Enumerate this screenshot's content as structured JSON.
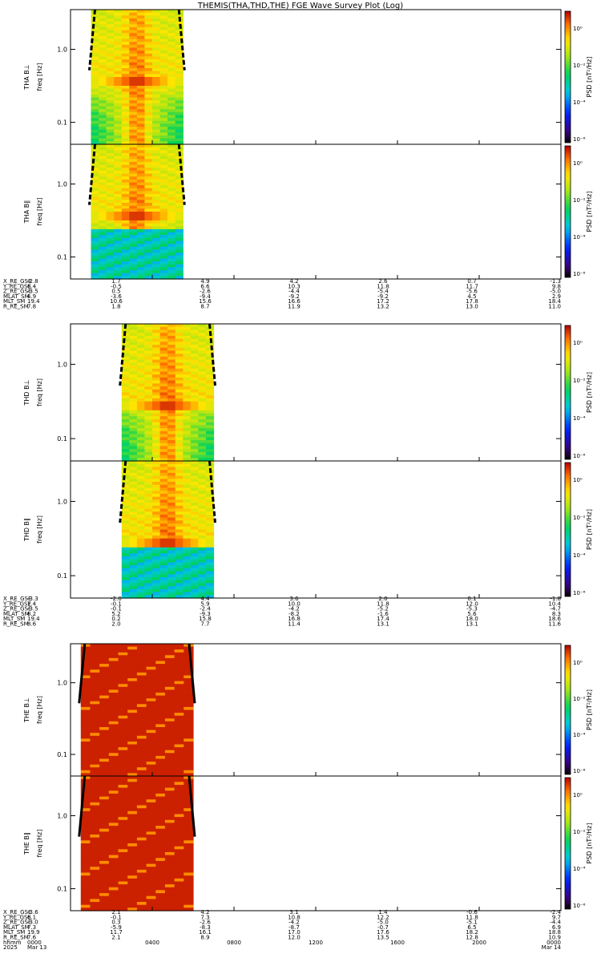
{
  "chart_data": {
    "type": "heatmap",
    "title": "THEMIS(THA,THD,THE) FGE Wave Survey Plot (Log)",
    "x_axis": {
      "ticks": [
        "0000",
        "0400",
        "0800",
        "1200",
        "1600",
        "2000",
        "0000"
      ],
      "row_label": "hhmm",
      "start_label": "2025",
      "dates": [
        "Mar 13",
        "Mar 14"
      ]
    },
    "y_axis": {
      "scale": "log",
      "ylim": [
        0.05,
        3.5
      ],
      "ticks": [
        "0.1",
        "1.0"
      ]
    },
    "colorbar": {
      "label": "PSD [nT²/Hz]",
      "ticks": [
        "10⁰",
        "10⁻²",
        "10⁻⁴",
        "10⁻⁶"
      ]
    },
    "panels": [
      {
        "probe": "THA",
        "component": "B⊥",
        "ylabel_probe": "THA B⊥",
        "ylabel_freq": "freq [Hz]",
        "data_start_hhmm": "0100",
        "data_end_hhmm": "0530",
        "peak_freq_hz": 0.35
      },
      {
        "probe": "THA",
        "component": "B∥",
        "ylabel_probe": "THA B∥",
        "ylabel_freq": "freq [Hz]",
        "data_start_hhmm": "0100",
        "data_end_hhmm": "0530",
        "peak_freq_hz": 0.37
      },
      {
        "probe": "THD",
        "component": "B⊥",
        "ylabel_probe": "THD B⊥",
        "ylabel_freq": "freq [Hz]",
        "data_start_hhmm": "0230",
        "data_end_hhmm": "0700",
        "peak_freq_hz": 0.28
      },
      {
        "probe": "THD",
        "component": "B∥",
        "ylabel_probe": "THD B∥",
        "ylabel_freq": "freq [Hz]",
        "data_start_hhmm": "0230",
        "data_end_hhmm": "0700",
        "peak_freq_hz": 0.28
      },
      {
        "probe": "THE",
        "component": "B⊥",
        "ylabel_probe": "THE B⊥",
        "ylabel_freq": "freq [Hz]",
        "data_start_hhmm": "0030",
        "data_end_hhmm": "0600",
        "peak_freq_hz": null
      },
      {
        "probe": "THE",
        "component": "B∥",
        "ylabel_probe": "THE B∥",
        "ylabel_freq": "freq [Hz]",
        "data_start_hhmm": "0030",
        "data_end_hhmm": "0600",
        "peak_freq_hz": null
      }
    ],
    "ephemeris_blocks": [
      {
        "probe": "THA",
        "rows": [
          {
            "label": "X_RE_GSE",
            "values": [
              "-2.8",
              "1.7",
              "4.9",
              "4.2",
              "2.6",
              "0.7",
              "-1.3"
            ]
          },
          {
            "label": "Y_RE_GSE",
            "values": [
              "6.4",
              "-0.5",
              "6.6",
              "10.3",
              "11.8",
              "11.7",
              "9.8"
            ]
          },
          {
            "label": "Z_RE_GSE",
            "values": [
              "-3.5",
              "0.5",
              "-2.6",
              "-4.4",
              "-5.4",
              "-5.6",
              "-5.0"
            ]
          },
          {
            "label": "MLAT_SM",
            "values": [
              "4.9",
              "-3.6",
              "-9.4",
              "-9.2",
              "-9.2",
              "4.5",
              "2.9"
            ]
          },
          {
            "label": "MLT_SM",
            "values": [
              "19.4",
              "10.6",
              "15.6",
              "16.6",
              "17.2",
              "17.8",
              "18.4"
            ]
          },
          {
            "label": "R_RE_SM",
            "values": [
              "7.8",
              "1.8",
              "8.7",
              "11.9",
              "13.2",
              "13.0",
              "11.0"
            ]
          }
        ]
      },
      {
        "probe": "THD",
        "rows": [
          {
            "label": "X_RE_GSE",
            "values": [
              "-3.3",
              "-2.0",
              "4.4",
              "3.6",
              "2.0",
              "0.1",
              "-1.8"
            ]
          },
          {
            "label": "Y_RE_GSE",
            "values": [
              "7.4",
              "-0.1",
              "5.9",
              "10.0",
              "11.8",
              "12.0",
              "10.4"
            ]
          },
          {
            "label": "Z_RE_GSE",
            "values": [
              "-3.5",
              "-0.1",
              "-2.4",
              "-4.2",
              "-5.2",
              "-5.3",
              "-4.7"
            ]
          },
          {
            "label": "MLAT_SM",
            "values": [
              "8.2",
              "5.2",
              "-9.3",
              "-8.2",
              "-1.6",
              "5.6",
              "8.3"
            ]
          },
          {
            "label": "MLT_SM",
            "values": [
              "19.4",
              "0.2",
              "15.8",
              "16.8",
              "17.4",
              "18.0",
              "18.6"
            ]
          },
          {
            "label": "R_RE_SM",
            "values": [
              "8.6",
              "2.0",
              "7.7",
              "11.4",
              "13.1",
              "13.1",
              "11.6"
            ]
          }
        ]
      },
      {
        "probe": "THE",
        "rows": [
          {
            "label": "X_RE_GSE",
            "values": [
              "-3.6",
              "2.1",
              "4.2",
              "3.1",
              "1.4",
              "-0.6",
              "-2.4"
            ]
          },
          {
            "label": "Y_RE_GSE",
            "values": [
              "6.1",
              "-0.1",
              "7.3",
              "10.8",
              "12.2",
              "11.8",
              "9.7"
            ]
          },
          {
            "label": "Z_RE_GSE",
            "values": [
              "-3.0",
              "0.3",
              "-2.6",
              "-4.2",
              "-5.0",
              "-5.1",
              "-4.4"
            ]
          },
          {
            "label": "MLAT_SM",
            "values": [
              "7.3",
              "-5.9",
              "-8.3",
              "-8.7",
              "-0.7",
              "6.5",
              "6.9"
            ]
          },
          {
            "label": "MLT_SM",
            "values": [
              "19.9",
              "11.7",
              "16.1",
              "17.0",
              "17.6",
              "18.2",
              "18.8"
            ]
          },
          {
            "label": "R_RE_SM",
            "values": [
              "7.6",
              "2.1",
              "8.9",
              "12.0",
              "13.5",
              "12.8",
              "10.9"
            ]
          }
        ]
      }
    ]
  }
}
